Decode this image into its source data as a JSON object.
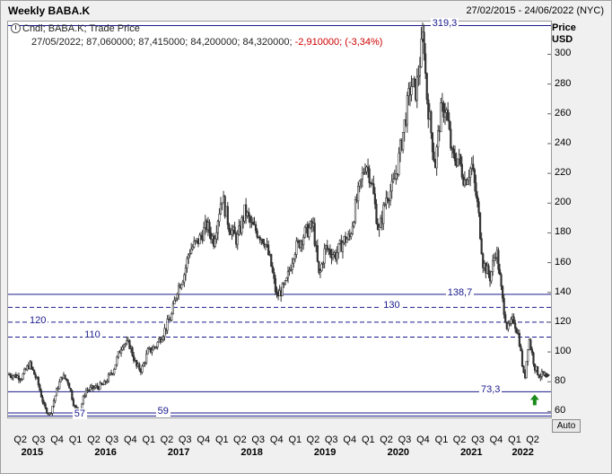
{
  "header": {
    "title": "Weekly BABA.K",
    "date_range": "27/02/2015 - 24/06/2022 (NYC)"
  },
  "legend": {
    "line1": "Cndl; BABA.K; Trade Price",
    "line2_values": "27/05/2022; 87,060000; 87,415000; 84,200000; 84,320000;",
    "line2_change": "-2,910000; (-3,34%)"
  },
  "axis": {
    "price_label": "Price",
    "currency_label": "USD",
    "auto_label": "Auto"
  },
  "colors": {
    "candle": "#333333",
    "level_line": "#1a1a8c",
    "negative": "#d00000",
    "arrow": "#1a8a1a"
  },
  "chart_data": {
    "type": "candlestick",
    "title": "Weekly BABA.K",
    "ylabel": "Price USD",
    "ylim": [
      56,
      322
    ],
    "y_ticks": [
      60,
      80,
      100,
      120,
      140,
      160,
      180,
      200,
      220,
      240,
      260,
      280,
      300
    ],
    "x_range": [
      "2015-02-27",
      "2022-06-24"
    ],
    "quarter_labels": [
      {
        "label": "Q2",
        "date": "2015-04-01"
      },
      {
        "label": "Q3",
        "date": "2015-07-01"
      },
      {
        "label": "Q4",
        "date": "2015-10-01"
      },
      {
        "label": "Q1",
        "date": "2016-01-01"
      },
      {
        "label": "Q2",
        "date": "2016-04-01"
      },
      {
        "label": "Q3",
        "date": "2016-07-01"
      },
      {
        "label": "Q4",
        "date": "2016-10-01"
      },
      {
        "label": "Q1",
        "date": "2017-01-01"
      },
      {
        "label": "Q2",
        "date": "2017-04-01"
      },
      {
        "label": "Q3",
        "date": "2017-07-01"
      },
      {
        "label": "Q4",
        "date": "2017-10-01"
      },
      {
        "label": "Q1",
        "date": "2018-01-01"
      },
      {
        "label": "Q2",
        "date": "2018-04-01"
      },
      {
        "label": "Q3",
        "date": "2018-07-01"
      },
      {
        "label": "Q4",
        "date": "2018-10-01"
      },
      {
        "label": "Q1",
        "date": "2019-01-01"
      },
      {
        "label": "Q2",
        "date": "2019-04-01"
      },
      {
        "label": "Q3",
        "date": "2019-07-01"
      },
      {
        "label": "Q4",
        "date": "2019-10-01"
      },
      {
        "label": "Q1",
        "date": "2020-01-01"
      },
      {
        "label": "Q2",
        "date": "2020-04-01"
      },
      {
        "label": "Q3",
        "date": "2020-07-01"
      },
      {
        "label": "Q4",
        "date": "2020-10-01"
      },
      {
        "label": "Q1",
        "date": "2021-01-01"
      },
      {
        "label": "Q2",
        "date": "2021-04-01"
      },
      {
        "label": "Q3",
        "date": "2021-07-01"
      },
      {
        "label": "Q4",
        "date": "2021-10-01"
      },
      {
        "label": "Q1",
        "date": "2022-01-01"
      },
      {
        "label": "Q2",
        "date": "2022-04-01"
      }
    ],
    "year_labels": [
      {
        "label": "2015",
        "date": "2015-07-01"
      },
      {
        "label": "2016",
        "date": "2016-07-01"
      },
      {
        "label": "2017",
        "date": "2017-07-01"
      },
      {
        "label": "2018",
        "date": "2018-07-01"
      },
      {
        "label": "2019",
        "date": "2019-07-01"
      },
      {
        "label": "2020",
        "date": "2020-07-01"
      },
      {
        "label": "2021",
        "date": "2021-07-01"
      },
      {
        "label": "2022",
        "date": "2022-03-15"
      }
    ],
    "levels": [
      {
        "value": 319.3,
        "label": "319,3",
        "style": "solid",
        "label_date": "2020-12-01"
      },
      {
        "value": 138.7,
        "label": "138,7",
        "style": "solid",
        "label_date": "2021-02-15"
      },
      {
        "value": 130,
        "label": "130",
        "style": "dashed",
        "label_date": "2020-04-01"
      },
      {
        "value": 120,
        "label": "120",
        "style": "dashed",
        "label_date": "2015-06-01"
      },
      {
        "value": 110,
        "label": "110",
        "style": "dashed",
        "label_date": "2016-03-01"
      },
      {
        "value": 73.3,
        "label": "73,3",
        "style": "solid",
        "label_date": "2021-08-01"
      },
      {
        "value": 59,
        "label": "59",
        "style": "solid",
        "label_date": "2017-03-01"
      },
      {
        "value": 57,
        "label": "57",
        "style": "solid",
        "label_date": "2016-01-10"
      }
    ],
    "last_close": 84.32,
    "price_path": [
      [
        "2015-02-27",
        85
      ],
      [
        "2015-05-01",
        83
      ],
      [
        "2015-06-10",
        92
      ],
      [
        "2015-07-20",
        80
      ],
      [
        "2015-08-24",
        62
      ],
      [
        "2015-09-20",
        58
      ],
      [
        "2015-10-25",
        75
      ],
      [
        "2015-11-20",
        84
      ],
      [
        "2015-12-20",
        80
      ],
      [
        "2016-01-20",
        63
      ],
      [
        "2016-02-15",
        60
      ],
      [
        "2016-03-15",
        74
      ],
      [
        "2016-05-01",
        76
      ],
      [
        "2016-06-15",
        78
      ],
      [
        "2016-08-01",
        88
      ],
      [
        "2016-09-15",
        106
      ],
      [
        "2016-10-20",
        105
      ],
      [
        "2016-11-25",
        90
      ],
      [
        "2016-12-20",
        88
      ],
      [
        "2017-01-20",
        100
      ],
      [
        "2017-03-01",
        104
      ],
      [
        "2017-04-15",
        115
      ],
      [
        "2017-05-20",
        125
      ],
      [
        "2017-06-15",
        142
      ],
      [
        "2017-07-20",
        152
      ],
      [
        "2017-08-15",
        168
      ],
      [
        "2017-10-01",
        175
      ],
      [
        "2017-11-10",
        185
      ],
      [
        "2017-12-15",
        175
      ],
      [
        "2018-01-25",
        205
      ],
      [
        "2018-03-01",
        185
      ],
      [
        "2018-04-10",
        175
      ],
      [
        "2018-05-20",
        195
      ],
      [
        "2018-06-20",
        185
      ],
      [
        "2018-07-25",
        180
      ],
      [
        "2018-08-25",
        175
      ],
      [
        "2018-09-25",
        160
      ],
      [
        "2018-10-25",
        137
      ],
      [
        "2018-12-10",
        145
      ],
      [
        "2019-01-20",
        168
      ],
      [
        "2019-03-15",
        180
      ],
      [
        "2019-04-25",
        185
      ],
      [
        "2019-05-25",
        150
      ],
      [
        "2019-06-25",
        170
      ],
      [
        "2019-08-15",
        165
      ],
      [
        "2019-09-25",
        175
      ],
      [
        "2019-10-25",
        177
      ],
      [
        "2019-11-26",
        200
      ],
      [
        "2020-01-13",
        228
      ],
      [
        "2020-02-10",
        215
      ],
      [
        "2020-03-18",
        180
      ],
      [
        "2020-04-25",
        205
      ],
      [
        "2020-05-25",
        210
      ],
      [
        "2020-06-20",
        225
      ],
      [
        "2020-07-20",
        250
      ],
      [
        "2020-08-25",
        280
      ],
      [
        "2020-09-20",
        275
      ],
      [
        "2020-10-27",
        315
      ],
      [
        "2020-11-10",
        275
      ],
      [
        "2020-12-24",
        225
      ],
      [
        "2021-01-20",
        260
      ],
      [
        "2021-02-15",
        265
      ],
      [
        "2021-03-20",
        230
      ],
      [
        "2021-04-20",
        230
      ],
      [
        "2021-05-20",
        215
      ],
      [
        "2021-06-25",
        225
      ],
      [
        "2021-07-27",
        195
      ],
      [
        "2021-08-20",
        160
      ],
      [
        "2021-09-25",
        150
      ],
      [
        "2021-10-25",
        170
      ],
      [
        "2021-11-25",
        135
      ],
      [
        "2021-12-20",
        115
      ],
      [
        "2022-01-20",
        122
      ],
      [
        "2022-02-15",
        110
      ],
      [
        "2022-03-15",
        80
      ],
      [
        "2022-04-05",
        110
      ],
      [
        "2022-05-05",
        90
      ],
      [
        "2022-05-27",
        84.32
      ],
      [
        "2022-06-24",
        85
      ]
    ]
  }
}
